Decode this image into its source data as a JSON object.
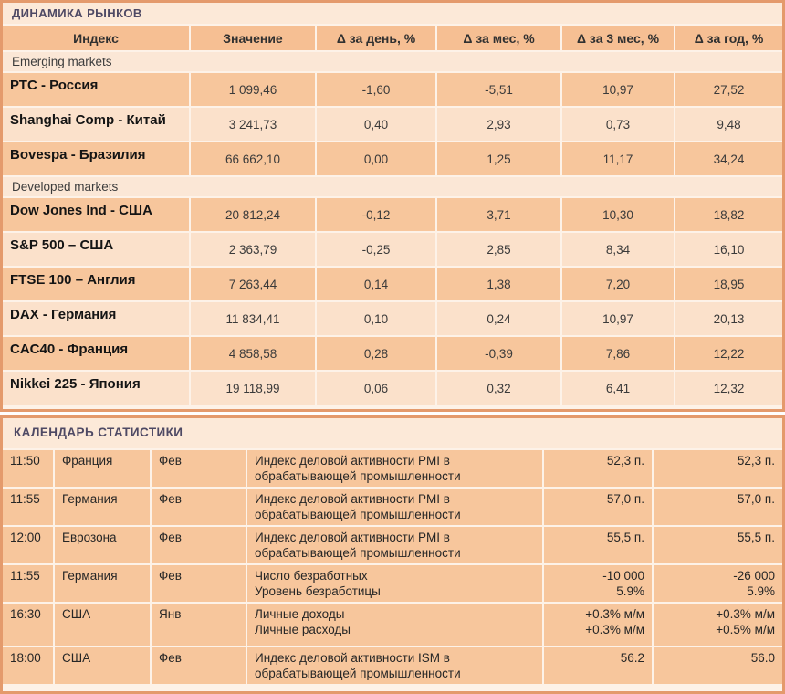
{
  "page": {
    "markets_title": "ДИНАМИКА РЫНКОВ",
    "calendar_title": "КАЛЕНДАРЬ СТАТИСТИКИ"
  },
  "markets": {
    "headers": [
      "Индекс",
      "Значение",
      "Δ за день, %",
      "Δ за мес, %",
      "Δ за 3 мес, %",
      "Δ за год, %"
    ],
    "sections": [
      {
        "label": "Emerging markets",
        "rows": [
          {
            "name": "РТС - Россия",
            "value": "1 099,46",
            "d_day": "-1,60",
            "d_month": "-5,51",
            "d_3m": "10,97",
            "d_year": "27,52"
          },
          {
            "name": "Shanghai Comp - Китай",
            "value": "3 241,73",
            "d_day": "0,40",
            "d_month": "2,93",
            "d_3m": "0,73",
            "d_year": "9,48"
          },
          {
            "name": "Bovespa - Бразилия",
            "value": "66 662,10",
            "d_day": "0,00",
            "d_month": "1,25",
            "d_3m": "11,17",
            "d_year": "34,24"
          }
        ]
      },
      {
        "label": "Developed markets",
        "rows": [
          {
            "name": "Dow Jones Ind - США",
            "value": "20 812,24",
            "d_day": "-0,12",
            "d_month": "3,71",
            "d_3m": "10,30",
            "d_year": "18,82"
          },
          {
            "name": "S&P 500 – США",
            "value": "2 363,79",
            "d_day": "-0,25",
            "d_month": "2,85",
            "d_3m": "8,34",
            "d_year": "16,10"
          },
          {
            "name": "FTSE 100 – Англия",
            "value": "7 263,44",
            "d_day": "0,14",
            "d_month": "1,38",
            "d_3m": "7,20",
            "d_year": "18,95"
          },
          {
            "name": "DAX - Германия",
            "value": "11 834,41",
            "d_day": "0,10",
            "d_month": "0,24",
            "d_3m": "10,97",
            "d_year": "20,13"
          },
          {
            "name": "CAC40 - Франция",
            "value": "4 858,58",
            "d_day": "0,28",
            "d_month": "-0,39",
            "d_3m": "7,86",
            "d_year": "12,22"
          },
          {
            "name": "Nikkei 225 - Япония",
            "value": "19 118,99",
            "d_day": "0,06",
            "d_month": "0,32",
            "d_3m": "6,41",
            "d_year": "12,32"
          }
        ]
      }
    ]
  },
  "calendar": {
    "rows": [
      {
        "time": "11:50",
        "country": "Франция",
        "period": "Фев",
        "indicator": "Индекс деловой активности PMI в\nобрабатывающей промышленности",
        "value1": "52,3 п.",
        "value2": "52,3 п."
      },
      {
        "time": "11:55",
        "country": "Германия",
        "period": "Фев",
        "indicator": "Индекс деловой активности PMI в\nобрабатывающей промышленности",
        "value1": "57,0 п.",
        "value2": "57,0 п."
      },
      {
        "time": "12:00",
        "country": "Еврозона",
        "period": "Фев",
        "indicator": "Индекс деловой активности PMI в\nобрабатывающей промышленности",
        "value1": "55,5 п.",
        "value2": "55,5 п."
      },
      {
        "time": "11:55",
        "country": "Германия",
        "period": "Фев",
        "indicator": "Число безработных\nУровень безработицы",
        "value1": "-10 000\n5.9%",
        "value2": "-26 000\n5.9%"
      },
      {
        "time": "16:30",
        "country": "США",
        "period": "Янв",
        "indicator": "Личные доходы\nЛичные расходы",
        "value1": "+0.3% м/м\n+0.3% м/м",
        "value2": "+0.3% м/м\n+0.5% м/м"
      },
      {
        "time": "18:00",
        "country": "США",
        "period": "Фев",
        "indicator": "Индекс деловой активности ISM в\nобрабатывающей промышленности",
        "value1": "56.2",
        "value2": "56.0"
      }
    ]
  },
  "colors": {
    "table_border": "#E49A6C",
    "separator": "#FDF2E8",
    "header_bg": "#F6BF93",
    "row_dark": "#F7C69C",
    "row_light": "#FBE1CB",
    "section_bg": "#FBE7D6",
    "title_bg": "#FCE9D8",
    "title_text": "#4E4964"
  }
}
